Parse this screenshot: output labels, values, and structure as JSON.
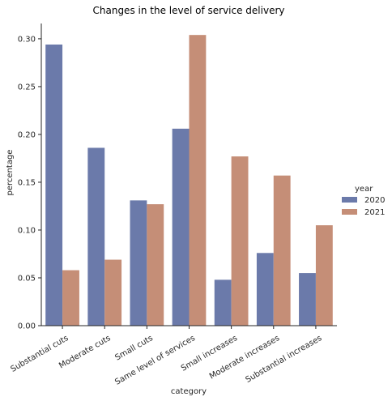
{
  "chart_data": {
    "type": "bar",
    "title": "Changes in the level of service delivery",
    "xlabel": "category",
    "ylabel": "percentage",
    "categories": [
      "Substantial cuts",
      "Moderate cuts",
      "Small cuts",
      "Same level of services",
      "Small increases",
      "Moderate increases",
      "Substantial increases"
    ],
    "series": [
      {
        "name": "2020",
        "color": "#6b7aaa",
        "values": [
          0.294,
          0.186,
          0.131,
          0.206,
          0.048,
          0.076,
          0.055
        ]
      },
      {
        "name": "2021",
        "color": "#c58e77",
        "values": [
          0.058,
          0.069,
          0.127,
          0.304,
          0.177,
          0.157,
          0.105
        ]
      }
    ],
    "ylim": [
      0,
      0.305
    ],
    "yticks": [
      "0.00",
      "0.05",
      "0.10",
      "0.15",
      "0.20",
      "0.25",
      "0.30"
    ],
    "legend_title": "year",
    "legend_position": "right",
    "grid": false
  }
}
